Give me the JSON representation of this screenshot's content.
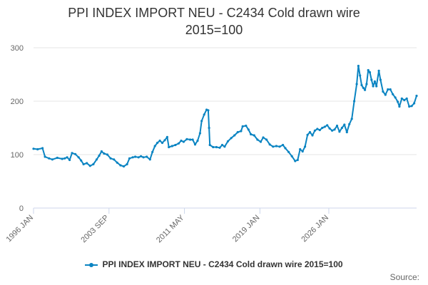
{
  "chart_data": {
    "type": "line",
    "title_line1": "PPI INDEX IMPORT NEU - C2434 Cold drawn wire",
    "title_line2": "2015=100",
    "xlabel": "",
    "ylabel": "",
    "ylim": [
      0,
      300
    ],
    "y_ticks": [
      "0",
      "100",
      "200",
      "300"
    ],
    "x_ticks": [
      "1996 JAN",
      "2003 SEP",
      "2011 MAY",
      "2019 JAN",
      "2026 JAN"
    ],
    "grid": true,
    "legend_position": "bottom",
    "credits": "Source:",
    "series": [
      {
        "name": "PPI INDEX IMPORT NEU - C2434 Cold drawn wire 2015=100",
        "color": "#0a84c2",
        "points": [
          [
            "1996-01",
            111
          ],
          [
            "1996-06",
            110
          ],
          [
            "1996-12",
            112
          ],
          [
            "1997-03",
            96
          ],
          [
            "1997-08",
            93
          ],
          [
            "1997-12",
            91
          ],
          [
            "1998-06",
            94
          ],
          [
            "1998-12",
            92
          ],
          [
            "1999-03",
            93
          ],
          [
            "1999-06",
            95
          ],
          [
            "1999-09",
            90
          ],
          [
            "1999-12",
            103
          ],
          [
            "2000-04",
            101
          ],
          [
            "2000-08",
            95
          ],
          [
            "2000-11",
            89
          ],
          [
            "2001-02",
            82
          ],
          [
            "2001-06",
            84
          ],
          [
            "2001-10",
            79
          ],
          [
            "2002-02",
            82
          ],
          [
            "2002-06",
            91
          ],
          [
            "2002-09",
            98
          ],
          [
            "2002-12",
            106
          ],
          [
            "2003-03",
            102
          ],
          [
            "2003-07",
            100
          ],
          [
            "2003-11",
            93
          ],
          [
            "2004-03",
            91
          ],
          [
            "2004-07",
            85
          ],
          [
            "2004-11",
            80
          ],
          [
            "2005-03",
            78
          ],
          [
            "2005-07",
            82
          ],
          [
            "2005-10",
            93
          ],
          [
            "2006-02",
            95
          ],
          [
            "2006-05",
            96
          ],
          [
            "2006-09",
            95
          ],
          [
            "2006-12",
            97
          ],
          [
            "2007-03",
            95
          ],
          [
            "2007-07",
            96
          ],
          [
            "2007-11",
            91
          ],
          [
            "2008-02",
            105
          ],
          [
            "2008-05",
            116
          ],
          [
            "2008-08",
            122
          ],
          [
            "2008-11",
            126
          ],
          [
            "2009-02",
            122
          ],
          [
            "2009-05",
            127
          ],
          [
            "2009-08",
            133
          ],
          [
            "2009-10",
            114
          ],
          [
            "2010-02",
            116
          ],
          [
            "2010-06",
            118
          ],
          [
            "2010-10",
            121
          ],
          [
            "2011-01",
            126
          ],
          [
            "2011-04",
            124
          ],
          [
            "2011-08",
            129
          ],
          [
            "2011-12",
            128
          ],
          [
            "2012-03",
            128
          ],
          [
            "2012-06",
            119
          ],
          [
            "2012-09",
            126
          ],
          [
            "2012-12",
            140
          ],
          [
            "2013-02",
            163
          ],
          [
            "2013-05",
            175
          ],
          [
            "2013-08",
            184
          ],
          [
            "2013-10",
            183
          ],
          [
            "2013-11",
            150
          ],
          [
            "2013-12",
            118
          ],
          [
            "2014-04",
            114
          ],
          [
            "2014-08",
            114
          ],
          [
            "2014-12",
            113
          ],
          [
            "2015-03",
            118
          ],
          [
            "2015-06",
            115
          ],
          [
            "2015-10",
            125
          ],
          [
            "2016-02",
            131
          ],
          [
            "2016-06",
            136
          ],
          [
            "2016-10",
            142
          ],
          [
            "2017-02",
            144
          ],
          [
            "2017-04",
            153
          ],
          [
            "2017-08",
            154
          ],
          [
            "2017-11",
            147
          ],
          [
            "2018-02",
            138
          ],
          [
            "2018-06",
            136
          ],
          [
            "2018-10",
            128
          ],
          [
            "2019-02",
            124
          ],
          [
            "2019-05",
            132
          ],
          [
            "2019-09",
            128
          ],
          [
            "2020-01",
            119
          ],
          [
            "2020-05",
            115
          ],
          [
            "2020-09",
            116
          ],
          [
            "2021-01",
            115
          ],
          [
            "2021-05",
            118
          ],
          [
            "2021-08",
            112
          ],
          [
            "2021-12",
            105
          ],
          [
            "2022-04",
            97
          ],
          [
            "2022-08",
            88
          ],
          [
            "2022-11",
            90
          ],
          [
            "2023-02",
            110
          ],
          [
            "2023-05",
            106
          ],
          [
            "2023-08",
            115
          ],
          [
            "2023-11",
            137
          ],
          [
            "2024-02",
            142
          ],
          [
            "2024-05",
            136
          ],
          [
            "2024-08",
            145
          ],
          [
            "2024-11",
            148
          ],
          [
            "2025-02",
            146
          ],
          [
            "2025-05",
            150
          ],
          [
            "2025-08",
            152
          ],
          [
            "2025-11",
            155
          ],
          [
            "2026-02",
            149
          ],
          [
            "2026-05",
            145
          ],
          [
            "2026-08",
            147
          ],
          [
            "2026-11",
            154
          ],
          [
            "2027-02",
            143
          ],
          [
            "2027-05",
            150
          ],
          [
            "2027-08",
            156
          ],
          [
            "2027-11",
            142
          ],
          [
            "2028-02",
            157
          ],
          [
            "2028-05",
            167
          ],
          [
            "2028-08",
            200
          ],
          [
            "2028-11",
            232
          ],
          [
            "2029-01",
            266
          ],
          [
            "2029-03",
            248
          ],
          [
            "2029-05",
            230
          ],
          [
            "2029-07",
            225
          ],
          [
            "2029-09",
            221
          ],
          [
            "2029-11",
            232
          ],
          [
            "2030-01",
            258
          ],
          [
            "2030-03",
            254
          ],
          [
            "2030-05",
            240
          ],
          [
            "2030-07",
            228
          ],
          [
            "2030-09",
            237
          ],
          [
            "2030-11",
            228
          ],
          [
            "2031-02",
            257
          ],
          [
            "2031-04",
            240
          ],
          [
            "2031-07",
            218
          ],
          [
            "2031-10",
            212
          ],
          [
            "2032-01",
            222
          ],
          [
            "2032-04",
            222
          ],
          [
            "2032-07",
            213
          ],
          [
            "2032-10",
            207
          ],
          [
            "2033-01",
            199
          ],
          [
            "2033-03",
            190
          ],
          [
            "2033-06",
            205
          ],
          [
            "2033-09",
            202
          ],
          [
            "2033-12",
            205
          ],
          [
            "2034-03",
            190
          ],
          [
            "2034-06",
            191
          ],
          [
            "2034-09",
            196
          ],
          [
            "2034-12",
            210
          ]
        ]
      }
    ]
  }
}
